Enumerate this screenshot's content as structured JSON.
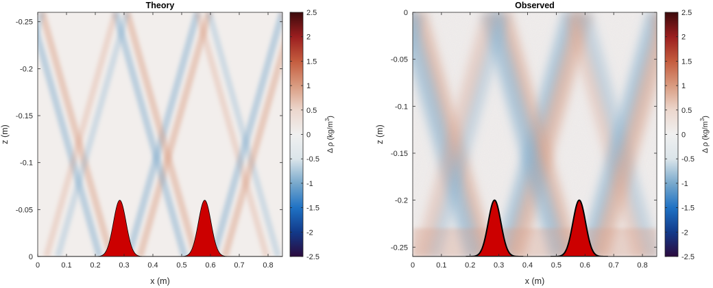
{
  "chart_data": [
    {
      "type": "heatmap",
      "title": "Theory",
      "xlabel": "x (m)",
      "ylabel": "z (m)",
      "xlim": [
        0,
        0.85
      ],
      "ylim": [
        0,
        -0.26
      ],
      "y_direction": "decreasing-up",
      "x_ticks": [
        "0",
        "0.1",
        "0.2",
        "0.3",
        "0.4",
        "0.5",
        "0.6",
        "0.7",
        "0.8"
      ],
      "x_tick_values": [
        0,
        0.1,
        0.2,
        0.3,
        0.4,
        0.5,
        0.6,
        0.7,
        0.8
      ],
      "y_ticks": [
        "-0.25",
        "-0.2",
        "-0.15",
        "-0.1",
        "-0.05",
        "0"
      ],
      "y_tick_values": [
        -0.25,
        -0.2,
        -0.15,
        -0.1,
        -0.05,
        0
      ],
      "topography_peaks_x": [
        0.285,
        0.58
      ],
      "topography_peak_height": 0.06,
      "colorbar": {
        "label_parts": [
          "Δ ρ (kg/m",
          "3",
          ")"
        ],
        "range": [
          -2.5,
          2.5
        ],
        "ticks": [
          "2.5",
          "2",
          "1.5",
          "1",
          "0.5",
          "0",
          "-0.5",
          "-1",
          "-1.5",
          "-2",
          "-2.5"
        ],
        "tick_values": [
          2.5,
          2,
          1.5,
          1,
          0.5,
          0,
          -0.5,
          -1,
          -1.5,
          -2,
          -2.5
        ],
        "colormap": [
          "#2b0a3d",
          "#123a8a",
          "#1f72c4",
          "#79a9cc",
          "#dbe5ea",
          "#f0f0f0",
          "#ecd7cd",
          "#d99b80",
          "#c45c3e",
          "#9b1e1f",
          "#3c0a0c"
        ]
      }
    },
    {
      "type": "heatmap",
      "title": "Observed",
      "xlabel": "x (m)",
      "ylabel": "z (m)",
      "xlim": [
        0,
        0.85
      ],
      "ylim": [
        0,
        -0.26
      ],
      "y_direction": "increasing-down",
      "x_ticks": [
        "0",
        "0.1",
        "0.2",
        "0.3",
        "0.4",
        "0.5",
        "0.6",
        "0.7",
        "0.8"
      ],
      "x_tick_values": [
        0,
        0.1,
        0.2,
        0.3,
        0.4,
        0.5,
        0.6,
        0.7,
        0.8
      ],
      "y_ticks": [
        "0",
        "-0.05",
        "-0.1",
        "-0.15",
        "-0.2",
        "-0.25"
      ],
      "y_tick_values": [
        0,
        -0.05,
        -0.1,
        -0.15,
        -0.2,
        -0.25
      ],
      "topography_peaks_x": [
        0.285,
        0.58
      ],
      "topography_peak_height": 0.06,
      "colorbar": {
        "label_parts": [
          "Δ ρ (kg/m",
          "3",
          ")"
        ],
        "range": [
          -2.5,
          2.5
        ],
        "ticks": [
          "2.5",
          "2",
          "1.5",
          "1",
          "0.5",
          "0",
          "-0.5",
          "-1",
          "-1.5",
          "-2",
          "-2.5"
        ],
        "tick_values": [
          2.5,
          2,
          1.5,
          1,
          0.5,
          0,
          -0.5,
          -1,
          -1.5,
          -2,
          -2.5
        ],
        "colormap": [
          "#2b0a3d",
          "#123a8a",
          "#1f72c4",
          "#79a9cc",
          "#dbe5ea",
          "#f0f0f0",
          "#ecd7cd",
          "#d99b80",
          "#c45c3e",
          "#9b1e1f",
          "#3c0a0c"
        ]
      }
    }
  ],
  "colors": {
    "topography_fill": "#cc0000",
    "topography_edge": "#000000",
    "positive_anomaly": "#d99b80",
    "negative_anomaly": "#79a9cc",
    "background_field": "#f2eeec"
  }
}
